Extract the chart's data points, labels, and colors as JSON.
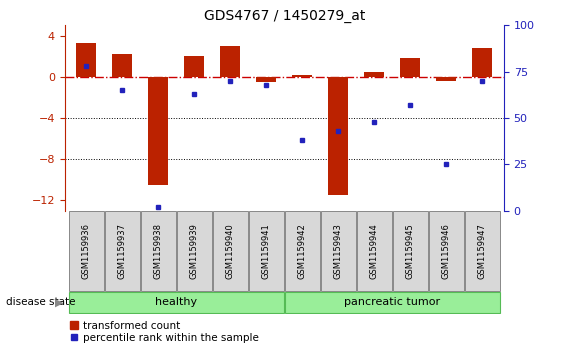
{
  "title": "GDS4767 / 1450279_at",
  "samples": [
    "GSM1159936",
    "GSM1159937",
    "GSM1159938",
    "GSM1159939",
    "GSM1159940",
    "GSM1159941",
    "GSM1159942",
    "GSM1159943",
    "GSM1159944",
    "GSM1159945",
    "GSM1159946",
    "GSM1159947"
  ],
  "red_values": [
    3.3,
    2.2,
    -10.5,
    2.0,
    3.0,
    -0.5,
    0.2,
    -11.5,
    0.5,
    1.8,
    -0.4,
    2.8
  ],
  "blue_values": [
    78,
    65,
    2,
    63,
    70,
    68,
    38,
    43,
    48,
    57,
    25,
    70
  ],
  "ylim_left": [
    -13,
    5
  ],
  "ylim_right": [
    0,
    100
  ],
  "yticks_left": [
    -12,
    -8,
    -4,
    0,
    4
  ],
  "yticks_right": [
    0,
    25,
    50,
    75,
    100
  ],
  "bar_color": "#BB2200",
  "dot_color": "#2222BB",
  "hline_color": "#CC0000",
  "dotted_line_color": "#000000",
  "healthy_label": "healthy",
  "tumor_label": "pancreatic tumor",
  "group_color": "#99EE99",
  "group_border_color": "#55BB55",
  "disease_state_label": "disease state",
  "legend_red_label": "transformed count",
  "legend_blue_label": "percentile rank within the sample",
  "bar_width": 0.55,
  "fig_width": 5.63,
  "fig_height": 3.63,
  "dpi": 100
}
